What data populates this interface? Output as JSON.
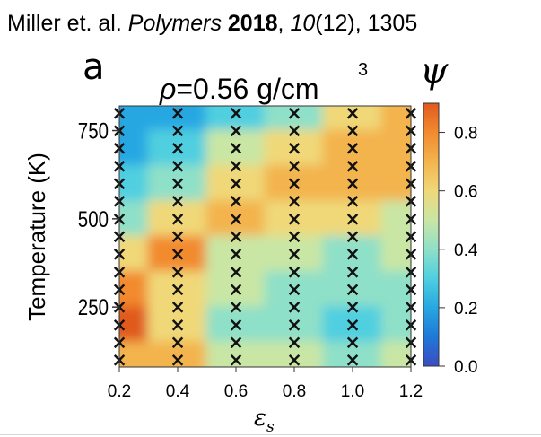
{
  "citation": {
    "authors": "Miller et. al.",
    "journal": "Polymers",
    "year": "2018",
    "volume": "10",
    "issue": "(12), ",
    "page": "1305",
    "sep1": " ",
    "sep2": ", "
  },
  "panel_label": "a",
  "chart_data": {
    "type": "heatmap",
    "title_symbol": "ρ",
    "title_value": "=0.56 g/cm",
    "title_exponent": "3",
    "xlabel": "ε",
    "xlabel_subscript": "s",
    "ylabel": "Temperature (K)",
    "colorbar_label": "ψ",
    "xlim": [
      0.2,
      1.2
    ],
    "ylim": [
      80,
      820
    ],
    "x_ticks": [
      "0.2",
      "0.4",
      "0.6",
      "0.8",
      "1.0",
      "1.2"
    ],
    "y_ticks": [
      "250",
      "500",
      "750"
    ],
    "colorbar_range": [
      0.0,
      0.9
    ],
    "colorbar_ticks": [
      "0.0",
      "0.2",
      "0.4",
      "0.6",
      "0.8"
    ],
    "colormap": [
      "#3b4cc0",
      "#1f78d8",
      "#26a7e2",
      "#4fcfe0",
      "#8fe0c8",
      "#c9e6a4",
      "#f0d878",
      "#f3b44d",
      "#f28a2f",
      "#e05a1e"
    ],
    "grid_x": [
      0.2,
      0.4,
      0.6,
      0.8,
      1.0,
      1.2
    ],
    "grid_y": [
      800,
      700,
      600,
      500,
      400,
      300,
      200,
      100
    ],
    "psi": [
      [
        0.22,
        0.18,
        0.32,
        0.4,
        0.6,
        0.7
      ],
      [
        0.2,
        0.3,
        0.48,
        0.62,
        0.7,
        0.72
      ],
      [
        0.28,
        0.38,
        0.58,
        0.74,
        0.68,
        0.66
      ],
      [
        0.38,
        0.6,
        0.72,
        0.58,
        0.56,
        0.54
      ],
      [
        0.56,
        0.8,
        0.54,
        0.48,
        0.42,
        0.46
      ],
      [
        0.78,
        0.62,
        0.46,
        0.42,
        0.36,
        0.4
      ],
      [
        0.85,
        0.56,
        0.42,
        0.38,
        0.34,
        0.42
      ],
      [
        0.72,
        0.66,
        0.5,
        0.46,
        0.44,
        0.5
      ]
    ],
    "markers": {
      "symbol": "×",
      "x": [
        0.2,
        0.4,
        0.6,
        0.8,
        1.0,
        1.2
      ],
      "y": [
        100,
        150,
        200,
        250,
        300,
        350,
        400,
        450,
        500,
        550,
        600,
        650,
        700,
        750,
        800
      ]
    }
  }
}
